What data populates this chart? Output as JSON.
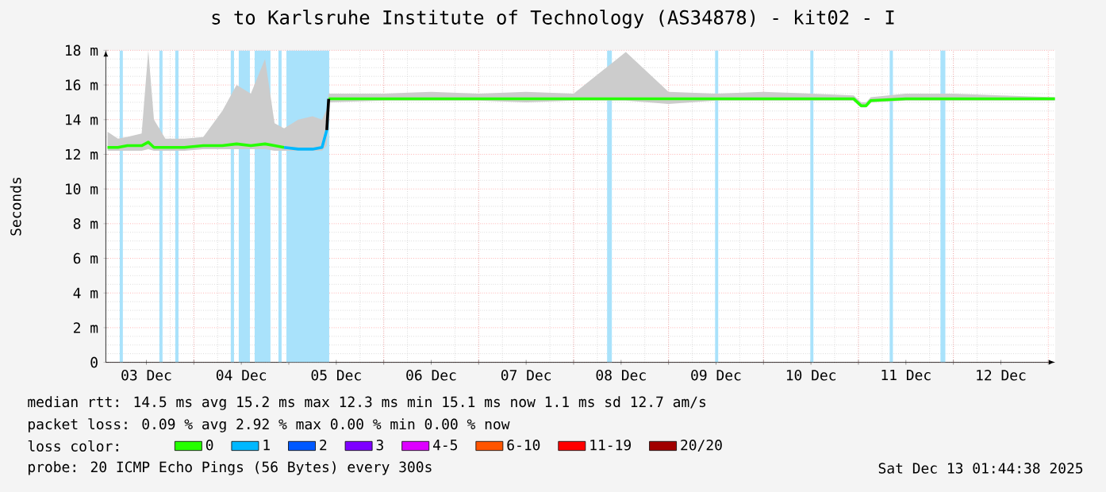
{
  "chart_data": {
    "type": "line",
    "title": "s to Karlsruhe Institute of Technology (AS34878) - kit02 - I",
    "ylabel": "Seconds",
    "xlim": [
      "2025-12-03T01:45",
      "2025-12-13T01:45"
    ],
    "ylim": [
      0,
      18
    ],
    "xticks": [
      {
        "value": "2025-12-03T12:00",
        "label": "03 Dec"
      },
      {
        "value": "2025-12-04T12:00",
        "label": "04 Dec"
      },
      {
        "value": "2025-12-05T12:00",
        "label": "05 Dec"
      },
      {
        "value": "2025-12-06T12:00",
        "label": "06 Dec"
      },
      {
        "value": "2025-12-07T12:00",
        "label": "07 Dec"
      },
      {
        "value": "2025-12-08T12:00",
        "label": "08 Dec"
      },
      {
        "value": "2025-12-09T12:00",
        "label": "09 Dec"
      },
      {
        "value": "2025-12-10T12:00",
        "label": "10 Dec"
      },
      {
        "value": "2025-12-11T12:00",
        "label": "11 Dec"
      },
      {
        "value": "2025-12-12T12:00",
        "label": "12 Dec"
      },
      {
        "value": "2025-12-04T00:00",
        "label": null
      },
      {
        "value": "2025-12-05T00:00",
        "label": null
      },
      {
        "value": "2025-12-06T00:00",
        "label": null
      },
      {
        "value": "2025-12-07T00:00",
        "label": null
      },
      {
        "value": "2025-12-08T00:00",
        "label": null
      },
      {
        "value": "2025-12-09T00:00",
        "label": null
      },
      {
        "value": "2025-12-10T00:00",
        "label": null
      },
      {
        "value": "2025-12-11T00:00",
        "label": null
      },
      {
        "value": "2025-12-12T00:00",
        "label": null
      },
      {
        "value": "2025-12-13T00:00",
        "label": null
      }
    ],
    "yticks": [
      0,
      {
        "value": 2,
        "label": "2 m"
      },
      {
        "value": 4,
        "label": "4 m"
      },
      {
        "value": 6,
        "label": "6 m"
      },
      {
        "value": 8,
        "label": "8 m"
      },
      {
        "value": 10,
        "label": "10 m"
      },
      {
        "value": 12,
        "label": "12 m"
      },
      {
        "value": 14,
        "label": "14 m"
      },
      {
        "value": 16,
        "label": "16 m"
      },
      {
        "value": 18,
        "label": "18 m"
      }
    ],
    "grid": true,
    "legend": "bottom",
    "legend_title": "loss color:",
    "bands": [
      {
        "axis": "x",
        "from": "2025-12-03T05:15",
        "to": "2025-12-03T06:03",
        "color": "#a9e2fb"
      },
      {
        "axis": "x",
        "from": "2025-12-03T15:17",
        "to": "2025-12-03T16:05",
        "color": "#a9e2fb"
      },
      {
        "axis": "x",
        "from": "2025-12-03T19:18",
        "to": "2025-12-03T20:07",
        "color": "#a9e2fb"
      },
      {
        "axis": "x",
        "from": "2025-12-04T09:20",
        "to": "2025-12-04T10:09",
        "color": "#a9e2fb"
      },
      {
        "axis": "x",
        "from": "2025-12-04T11:21",
        "to": "2025-12-04T14:10",
        "color": "#a9e2fb"
      },
      {
        "axis": "x",
        "from": "2025-12-04T15:22",
        "to": "2025-12-04T19:22",
        "color": "#a9e2fb"
      },
      {
        "axis": "x",
        "from": "2025-12-04T21:23",
        "to": "2025-12-04T22:11",
        "color": "#a9e2fb"
      },
      {
        "axis": "x",
        "from": "2025-12-04T23:24",
        "to": "2025-12-05T10:13",
        "color": "#a9e2fb"
      },
      {
        "axis": "x",
        "from": "2025-12-08T08:28",
        "to": "2025-12-08T09:40",
        "color": "#a9e2fb"
      },
      {
        "axis": "x",
        "from": "2025-12-09T11:46",
        "to": "2025-12-09T12:33",
        "color": "#a9e2fb"
      },
      {
        "axis": "x",
        "from": "2025-12-10T11:50",
        "to": "2025-12-10T12:37",
        "color": "#a9e2fb"
      },
      {
        "axis": "x",
        "from": "2025-12-11T07:54",
        "to": "2025-12-11T08:43",
        "color": "#a9e2fb"
      },
      {
        "axis": "x",
        "from": "2025-12-11T20:44",
        "to": "2025-12-11T21:58",
        "color": "#a9e2fb"
      }
    ],
    "series": [
      {
        "name": "0",
        "color": "#26ff00",
        "x": [
          "2025-12-03T02:10",
          "2025-12-03T04:48",
          "2025-12-03T07:12",
          "2025-12-03T10:48",
          "2025-12-03T12:29",
          "2025-12-03T13:55",
          "2025-12-03T16:48",
          "2025-12-03T21:36",
          "2025-12-04T02:24",
          "2025-12-04T07:12",
          "2025-12-04T10:48",
          "2025-12-04T14:24",
          "2025-12-04T18:00",
          "2025-12-04T20:24",
          "2025-12-04T22:48",
          "2025-12-05T02:24",
          "2025-12-05T06:00",
          "2025-12-05T08:24",
          "2025-12-05T09:36",
          "2025-12-05T10:05",
          "2025-12-06T00:00",
          "2025-12-06T12:00",
          "2025-12-07T00:00",
          "2025-12-07T12:00",
          "2025-12-08T00:00",
          "2025-12-08T13:12",
          "2025-12-09T00:00",
          "2025-12-09T12:00",
          "2025-12-10T00:00",
          "2025-12-10T12:00",
          "2025-12-10T22:48",
          "2025-12-11T00:43",
          "2025-12-11T01:55",
          "2025-12-11T03:07",
          "2025-12-11T12:00",
          "2025-12-12T00:00",
          "2025-12-12T12:00",
          "2025-12-13T01:40"
        ],
        "values": [
          12.4,
          12.4,
          12.5,
          12.5,
          12.7,
          12.4,
          12.4,
          12.4,
          12.5,
          12.5,
          12.6,
          12.5,
          12.6,
          12.5,
          12.4,
          null,
          null,
          null,
          null,
          15.2,
          15.2,
          15.2,
          15.2,
          15.2,
          15.2,
          15.2,
          15.2,
          15.2,
          15.2,
          15.2,
          15.2,
          14.8,
          14.8,
          15.1,
          15.2,
          15.2,
          15.2,
          15.2
        ],
        "lower": [
          12.2,
          12.2,
          12.2,
          12.2,
          12.3,
          12.2,
          12.2,
          12.2,
          12.3,
          12.3,
          12.3,
          12.3,
          12.3,
          12.2,
          12.2,
          12.2,
          12.2,
          12.2,
          12.5,
          15.0,
          15.1,
          15.1,
          15.1,
          15.0,
          15.1,
          15.1,
          14.9,
          15.1,
          15.1,
          15.1,
          15.1,
          14.7,
          14.7,
          15.0,
          15.1,
          15.1,
          15.1,
          15.1
        ],
        "upper": [
          13.3,
          12.9,
          13.0,
          13.2,
          18.0,
          14.0,
          12.9,
          12.9,
          13.0,
          14.5,
          16.0,
          15.5,
          17.5,
          13.8,
          13.5,
          14.0,
          14.2,
          14.0,
          14.6,
          15.5,
          15.5,
          15.6,
          15.5,
          15.6,
          15.5,
          17.9,
          15.6,
          15.5,
          15.6,
          15.5,
          15.4,
          15.0,
          15.0,
          15.3,
          15.5,
          15.5,
          15.4,
          15.3
        ]
      },
      {
        "name": "1",
        "color": "#00b8ff",
        "x": [
          "2025-12-04T22:48",
          "2025-12-05T02:24",
          "2025-12-05T06:00",
          "2025-12-05T08:24",
          "2025-12-05T09:36"
        ],
        "values": [
          12.4,
          12.3,
          12.3,
          12.4,
          13.4
        ]
      },
      {
        "name": "2",
        "color": "#0059ff"
      },
      {
        "name": "3",
        "color": "#7e00ff"
      },
      {
        "name": "4-5",
        "color": "#dd00ff"
      },
      {
        "name": "6-10",
        "color": "#ff5500"
      },
      {
        "name": "11-19",
        "color": "#ff0000"
      },
      {
        "name": "20/20",
        "color": "#a10000"
      },
      {
        "color": "#000000",
        "x": [
          "2025-12-05T09:36",
          "2025-12-05T10:05"
        ],
        "values": [
          13.4,
          15.2
        ]
      }
    ],
    "annotations": [
      "median rtt: 14.5 ms avg 15.2 ms max 12.3 ms min 15.1 ms now 1.1 ms sd 12.7 am/s",
      "packet loss: 0.09 % avg 2.92 % max 0.00 % min 0.00 % now",
      "probe: 20 ICMP Echo Pings (56 Bytes) every 300s",
      "Sat Dec 13 01:44:38 2025"
    ]
  }
}
